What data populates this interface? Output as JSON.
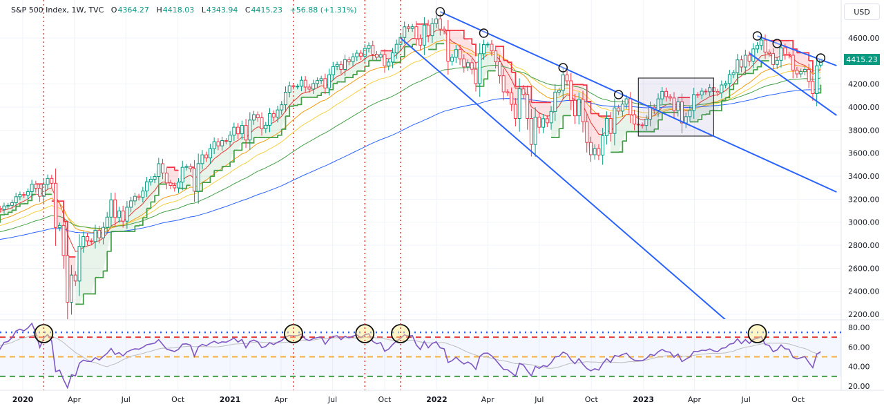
{
  "header": {
    "symbol": "S&P 500 Index, 1W, TVC",
    "open_label": "O",
    "open": "4364.27",
    "high_label": "H",
    "high": "4418.03",
    "low_label": "L",
    "low": "4343.94",
    "close_label": "C",
    "close": "4415.23",
    "change": "+56.88 (+1.31%)"
  },
  "currency_button": "USD",
  "last_price_label": "4415.23",
  "colors": {
    "up": "#089981",
    "down": "#f23645",
    "trendline": "#2962ff",
    "rsi": "#7e57c2",
    "marker_line": "#e53935"
  },
  "chart_data": [
    {
      "type": "candlestick",
      "title": "S&P 500 Index, 1W, TVC",
      "x_start": "2019-11-15",
      "x_interval": "1W",
      "last_candle": {
        "open": 4364.27,
        "high": 4418.03,
        "low": 4343.94,
        "close": 4415.23
      },
      "closes": [
        3120,
        3110,
        3141,
        3146,
        3169,
        3221,
        3240,
        3235,
        3265,
        3330,
        3295,
        3225,
        3328,
        3380,
        3338,
        2954,
        2972,
        2711,
        2305,
        2541,
        2489,
        2790,
        2875,
        2837,
        2831,
        2930,
        2864,
        2955,
        3044,
        3194,
        3041,
        3098,
        3009,
        3130,
        3185,
        3225,
        3216,
        3271,
        3351,
        3373,
        3397,
        3508,
        3427,
        3341,
        3319,
        3298,
        3348,
        3477,
        3484,
        3465,
        3270,
        3509,
        3585,
        3558,
        3638,
        3699,
        3663,
        3709,
        3703,
        3756,
        3825,
        3768,
        3841,
        3714,
        3887,
        3934,
        3907,
        3811,
        3842,
        3943,
        3913,
        3975,
        4020,
        4129,
        4185,
        4180,
        4181,
        4233,
        4174,
        4156,
        4204,
        4230,
        4247,
        4166,
        4281,
        4352,
        4370,
        4327,
        4412,
        4395,
        4437,
        4468,
        4442,
        4509,
        4535,
        4459,
        4433,
        4455,
        4357,
        4391,
        4471,
        4545,
        4605,
        4697,
        4683,
        4698,
        4595,
        4538,
        4712,
        4620,
        4725,
        4766,
        4677,
        4662,
        4398,
        4432,
        4500,
        4419,
        4349,
        4385,
        4329,
        4204,
        4463,
        4543,
        4546,
        4488,
        4393,
        4272,
        4132,
        4123,
        4024,
        3901,
        4158,
        4109,
        3901,
        3675,
        3912,
        3825,
        3899,
        3863,
        3962,
        4130,
        4145,
        4280,
        4228,
        4058,
        3924,
        4067,
        3873,
        3693,
        3586,
        3640,
        3583,
        3752,
        3901,
        3771,
        3993,
        3965,
        4026,
        4072,
        3934,
        3852,
        3845,
        3840,
        3895,
        3999,
        3973,
        4071,
        4136,
        4090,
        4079,
        3970,
        4046,
        3862,
        3917,
        3971,
        4109,
        4105,
        4138,
        4133,
        4169,
        4136,
        4124,
        4192,
        4205,
        4282,
        4299,
        4410,
        4348,
        4450,
        4399,
        4505,
        4536,
        4582,
        4478,
        4464,
        4370,
        4406,
        4515,
        4457,
        4450,
        4320,
        4288,
        4308,
        4327,
        4224,
        4117,
        4358,
        4415.23
      ],
      "y_ticks": [
        "2200.00",
        "2400.00",
        "2600.00",
        "2800.00",
        "3000.00",
        "3200.00",
        "3400.00",
        "3600.00",
        "3800.00",
        "4000.00",
        "4200.00",
        "4600.00"
      ],
      "ylim": [
        2130,
        4930
      ],
      "grid": true,
      "trendlines": [
        {
          "from": [
            "2022-01-07",
            4828
          ],
          "to": [
            "2023-12-08",
            3262
          ]
        },
        {
          "from": [
            "2021-10-29",
            4600
          ],
          "to": [
            "2023-05-26",
            2152
          ]
        },
        {
          "from": [
            "2023-07-21",
            4618
          ],
          "to": [
            "2023-12-08",
            4360
          ]
        },
        {
          "from": [
            "2023-07-07",
            4468
          ],
          "to": [
            "2023-12-08",
            3928
          ]
        }
      ],
      "highlight_box": {
        "from": [
          "2022-12-23",
          4252
        ],
        "to": [
          "2023-05-05",
          3748
        ]
      },
      "circled_points": [
        [
          "2022-01-07",
          4828
        ],
        [
          "2022-03-25",
          4642
        ],
        [
          "2022-08-12",
          4342
        ],
        [
          "2022-11-18",
          4108
        ],
        [
          "2023-07-21",
          4618
        ],
        [
          "2023-08-25",
          4552
        ],
        [
          "2023-11-10",
          4426
        ]
      ],
      "vertical_markers": [
        "2020-02-07",
        "2021-04-23",
        "2021-08-27",
        "2021-10-29"
      ]
    },
    {
      "type": "line",
      "series": [
        {
          "values_from": "closes",
          "indicator": "RSI"
        }
      ],
      "y_ticks": [
        "20.00",
        "40.00",
        "60.00",
        "80.00"
      ],
      "ylim": [
        12,
        88
      ],
      "levels": [
        {
          "value": 75,
          "color": "#2962ff",
          "style": "dotted"
        },
        {
          "value": 70,
          "color": "#e53935",
          "style": "dashed"
        },
        {
          "value": 50,
          "color": "#f5b041",
          "style": "dashed"
        },
        {
          "value": 30,
          "color": "#43a047",
          "style": "dashed"
        }
      ],
      "circled_points": [
        "2020-02-07",
        "2021-04-23",
        "2021-08-27",
        "2021-10-29",
        "2023-07-21"
      ]
    }
  ],
  "x_ticks": [
    {
      "date": "2020-01-01",
      "label": "2020",
      "major": true
    },
    {
      "date": "2020-04-01",
      "label": "Apr"
    },
    {
      "date": "2020-07-01",
      "label": "Jul"
    },
    {
      "date": "2020-10-01",
      "label": "Oct"
    },
    {
      "date": "2021-01-01",
      "label": "2021",
      "major": true
    },
    {
      "date": "2021-04-01",
      "label": "Apr"
    },
    {
      "date": "2021-07-01",
      "label": "Jul"
    },
    {
      "date": "2021-10-01",
      "label": "Oct"
    },
    {
      "date": "2022-01-01",
      "label": "2022",
      "major": true
    },
    {
      "date": "2022-04-01",
      "label": "Apr"
    },
    {
      "date": "2022-07-01",
      "label": "Jul"
    },
    {
      "date": "2022-10-01",
      "label": "Oct"
    },
    {
      "date": "2023-01-01",
      "label": "2023",
      "major": true
    },
    {
      "date": "2023-04-01",
      "label": "Apr"
    },
    {
      "date": "2023-07-01",
      "label": "Jul"
    },
    {
      "date": "2023-10-01",
      "label": "Oct"
    }
  ]
}
